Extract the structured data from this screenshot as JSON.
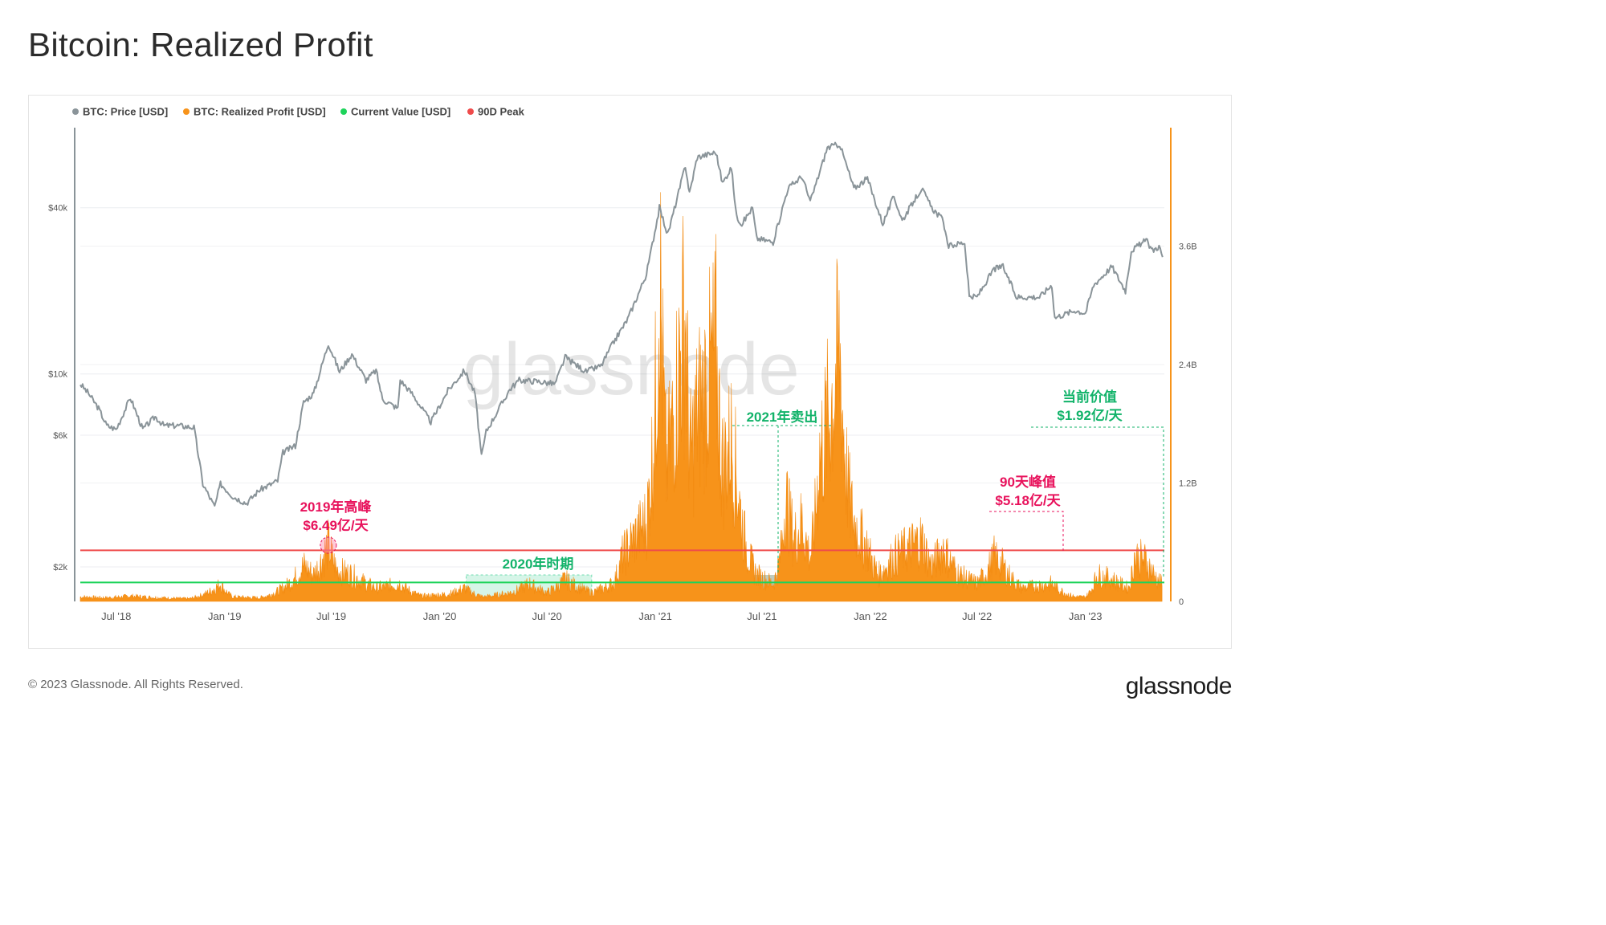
{
  "page": {
    "title": "Bitcoin: Realized Profit",
    "copyright": "© 2023 Glassnode. All Rights Reserved.",
    "logo": "glassnode",
    "watermark": "glassnode"
  },
  "chart_data": {
    "type": "area",
    "title": "Bitcoin: Realized Profit",
    "legend_position": "top-left",
    "legend": [
      {
        "label": "BTC: Price [USD]",
        "color": "#8a9499"
      },
      {
        "label": "BTC: Realized Profit [USD]",
        "color": "#f7931a"
      },
      {
        "label": "Current Value [USD]",
        "color": "#1dd35a"
      },
      {
        "label": "90D Peak",
        "color": "#ef4b4b"
      }
    ],
    "x_ticks": [
      "Jul '18",
      "Jan '19",
      "Jul '19",
      "Jan '20",
      "Jul '20",
      "Jan '21",
      "Jul '21",
      "Jan '22",
      "Jul '22",
      "Jan '23"
    ],
    "x_range": [
      "2018-05-01",
      "2023-05-15"
    ],
    "y_left": {
      "scale": "log",
      "ticks": [
        "$2k",
        "$6k",
        "$10k",
        "$40k"
      ],
      "tick_values": [
        2000,
        6000,
        10000,
        40000
      ]
    },
    "y_right": {
      "scale": "linear",
      "ticks": [
        "0",
        "1.2B",
        "2.4B",
        "3.6B"
      ],
      "tick_values": [
        0,
        1.2,
        2.4,
        3.6
      ],
      "unit": "B USD",
      "max": 4.8
    },
    "current_value_b": 0.192,
    "peak_90d_b": 0.518,
    "price_series": {
      "name": "BTC: Price [USD]",
      "points": [
        [
          "2018-05-01",
          9200
        ],
        [
          "2018-05-15",
          8500
        ],
        [
          "2018-06-01",
          7500
        ],
        [
          "2018-06-15",
          6500
        ],
        [
          "2018-07-01",
          6300
        ],
        [
          "2018-07-25",
          8200
        ],
        [
          "2018-08-15",
          6300
        ],
        [
          "2018-09-05",
          7000
        ],
        [
          "2018-09-20",
          6500
        ],
        [
          "2018-10-15",
          6500
        ],
        [
          "2018-11-10",
          6400
        ],
        [
          "2018-11-25",
          4000
        ],
        [
          "2018-12-15",
          3300
        ],
        [
          "2018-12-25",
          4000
        ],
        [
          "2019-01-15",
          3600
        ],
        [
          "2019-02-07",
          3400
        ],
        [
          "2019-03-01",
          3800
        ],
        [
          "2019-04-01",
          4100
        ],
        [
          "2019-04-10",
          5200
        ],
        [
          "2019-05-01",
          5500
        ],
        [
          "2019-05-15",
          7900
        ],
        [
          "2019-06-01",
          8500
        ],
        [
          "2019-06-26",
          12900
        ],
        [
          "2019-07-15",
          10200
        ],
        [
          "2019-08-05",
          11800
        ],
        [
          "2019-08-29",
          9500
        ],
        [
          "2019-09-15",
          10300
        ],
        [
          "2019-09-26",
          8100
        ],
        [
          "2019-10-22",
          7500
        ],
        [
          "2019-10-26",
          9500
        ],
        [
          "2019-11-15",
          8500
        ],
        [
          "2019-12-17",
          6700
        ],
        [
          "2020-01-15",
          8700
        ],
        [
          "2020-02-12",
          10300
        ],
        [
          "2020-03-01",
          8500
        ],
        [
          "2020-03-12",
          5000
        ],
        [
          "2020-03-20",
          6200
        ],
        [
          "2020-04-29",
          8800
        ],
        [
          "2020-05-15",
          9500
        ],
        [
          "2020-06-15",
          9400
        ],
        [
          "2020-07-15",
          9200
        ],
        [
          "2020-08-01",
          11500
        ],
        [
          "2020-09-05",
          10200
        ],
        [
          "2020-10-01",
          10700
        ],
        [
          "2020-10-21",
          12900
        ],
        [
          "2020-11-15",
          15800
        ],
        [
          "2020-12-01",
          19000
        ],
        [
          "2020-12-17",
          23000
        ],
        [
          "2021-01-08",
          40000
        ],
        [
          "2021-01-22",
          32000
        ],
        [
          "2021-02-08",
          44000
        ],
        [
          "2021-02-21",
          57000
        ],
        [
          "2021-02-28",
          45000
        ],
        [
          "2021-03-13",
          61000
        ],
        [
          "2021-04-14",
          63500
        ],
        [
          "2021-04-25",
          49000
        ],
        [
          "2021-05-10",
          56000
        ],
        [
          "2021-05-19",
          37000
        ],
        [
          "2021-05-28",
          35000
        ],
        [
          "2021-06-15",
          40000
        ],
        [
          "2021-06-22",
          31000
        ],
        [
          "2021-07-20",
          30000
        ],
        [
          "2021-08-14",
          47000
        ],
        [
          "2021-09-07",
          52000
        ],
        [
          "2021-09-21",
          42000
        ],
        [
          "2021-10-20",
          66000
        ],
        [
          "2021-11-10",
          68000
        ],
        [
          "2021-12-04",
          47000
        ],
        [
          "2021-12-27",
          51000
        ],
        [
          "2022-01-22",
          35000
        ],
        [
          "2022-02-10",
          44000
        ],
        [
          "2022-02-24",
          36000
        ],
        [
          "2022-03-29",
          47000
        ],
        [
          "2022-04-15",
          40000
        ],
        [
          "2022-05-05",
          36000
        ],
        [
          "2022-05-12",
          29000
        ],
        [
          "2022-06-10",
          30000
        ],
        [
          "2022-06-18",
          19000
        ],
        [
          "2022-07-01",
          19000
        ],
        [
          "2022-07-30",
          24000
        ],
        [
          "2022-08-14",
          24500
        ],
        [
          "2022-09-06",
          19000
        ],
        [
          "2022-10-15",
          19000
        ],
        [
          "2022-11-05",
          21000
        ],
        [
          "2022-11-10",
          16000
        ],
        [
          "2022-12-15",
          17000
        ],
        [
          "2023-01-01",
          16600
        ],
        [
          "2023-01-15",
          21000
        ],
        [
          "2023-02-15",
          24500
        ],
        [
          "2023-03-10",
          20000
        ],
        [
          "2023-03-20",
          28000
        ],
        [
          "2023-04-14",
          30500
        ],
        [
          "2023-04-25",
          28000
        ],
        [
          "2023-05-06",
          29000
        ],
        [
          "2023-05-12",
          26500
        ]
      ]
    },
    "profit_series": {
      "name": "BTC: Realized Profit [USD]",
      "unit": "B USD",
      "points": [
        [
          "2018-05-01",
          0.05
        ],
        [
          "2018-06-15",
          0.04
        ],
        [
          "2018-07-25",
          0.06
        ],
        [
          "2018-09-15",
          0.04
        ],
        [
          "2018-11-01",
          0.03
        ],
        [
          "2018-12-25",
          0.2
        ],
        [
          "2019-01-15",
          0.05
        ],
        [
          "2019-03-01",
          0.04
        ],
        [
          "2019-04-10",
          0.15
        ],
        [
          "2019-05-15",
          0.4
        ],
        [
          "2019-06-01",
          0.3
        ],
        [
          "2019-06-26",
          0.649
        ],
        [
          "2019-07-10",
          0.35
        ],
        [
          "2019-08-05",
          0.3
        ],
        [
          "2019-09-15",
          0.15
        ],
        [
          "2019-10-26",
          0.2
        ],
        [
          "2019-12-01",
          0.06
        ],
        [
          "2020-01-15",
          0.08
        ],
        [
          "2020-02-12",
          0.15
        ],
        [
          "2020-03-15",
          0.05
        ],
        [
          "2020-05-01",
          0.1
        ],
        [
          "2020-06-01",
          0.2
        ],
        [
          "2020-07-01",
          0.1
        ],
        [
          "2020-08-01",
          0.25
        ],
        [
          "2020-09-15",
          0.1
        ],
        [
          "2020-10-21",
          0.2
        ],
        [
          "2020-11-05",
          0.5
        ],
        [
          "2020-11-25",
          0.7
        ],
        [
          "2020-12-17",
          0.9
        ],
        [
          "2021-01-03",
          2.5
        ],
        [
          "2021-01-08",
          4.0
        ],
        [
          "2021-01-20",
          1.5
        ],
        [
          "2021-02-08",
          2.5
        ],
        [
          "2021-02-21",
          3.3
        ],
        [
          "2021-03-01",
          1.6
        ],
        [
          "2021-03-13",
          2.1
        ],
        [
          "2021-04-14",
          2.8
        ],
        [
          "2021-04-25",
          1.5
        ],
        [
          "2021-05-10",
          1.8
        ],
        [
          "2021-05-19",
          1.4
        ],
        [
          "2021-06-05",
          0.6
        ],
        [
          "2021-06-22",
          0.3
        ],
        [
          "2021-07-20",
          0.2
        ],
        [
          "2021-08-01",
          0.5
        ],
        [
          "2021-08-10",
          1.2
        ],
        [
          "2021-08-25",
          0.7
        ],
        [
          "2021-09-07",
          0.9
        ],
        [
          "2021-09-21",
          0.5
        ],
        [
          "2021-10-06",
          1.6
        ],
        [
          "2021-10-20",
          2.0
        ],
        [
          "2021-11-10",
          2.8
        ],
        [
          "2021-11-25",
          1.2
        ],
        [
          "2021-12-04",
          0.9
        ],
        [
          "2021-12-27",
          0.6
        ],
        [
          "2022-01-15",
          0.3
        ],
        [
          "2022-02-10",
          0.5
        ],
        [
          "2022-03-29",
          0.7
        ],
        [
          "2022-04-15",
          0.4
        ],
        [
          "2022-05-05",
          0.6
        ],
        [
          "2022-06-01",
          0.3
        ],
        [
          "2022-07-01",
          0.2
        ],
        [
          "2022-07-30",
          0.5
        ],
        [
          "2022-08-14",
          0.4
        ],
        [
          "2022-09-15",
          0.15
        ],
        [
          "2022-11-05",
          0.2
        ],
        [
          "2022-12-15",
          0.05
        ],
        [
          "2023-01-01",
          0.05
        ],
        [
          "2023-01-20",
          0.3
        ],
        [
          "2023-02-15",
          0.25
        ],
        [
          "2023-03-15",
          0.15
        ],
        [
          "2023-03-25",
          0.5
        ],
        [
          "2023-04-14",
          0.45
        ],
        [
          "2023-05-12",
          0.19
        ]
      ]
    },
    "annotations": [
      {
        "text": "2019年高峰",
        "value": "$6.49亿/天",
        "color": "#e8125c"
      },
      {
        "text": "2020年时期",
        "color": "#12b36a"
      },
      {
        "text": "2021年卖出",
        "color": "#12b36a"
      },
      {
        "text": "90天峰值",
        "value": "$5.18亿/天",
        "color": "#e8125c"
      },
      {
        "text": "当前价值",
        "value": "$1.92亿/天",
        "color": "#12b36a"
      }
    ],
    "highlight_periods": [
      {
        "from": "2020-02-15",
        "to": "2020-09-15"
      },
      {
        "from": "2021-05-25",
        "to": "2021-08-01"
      }
    ]
  }
}
